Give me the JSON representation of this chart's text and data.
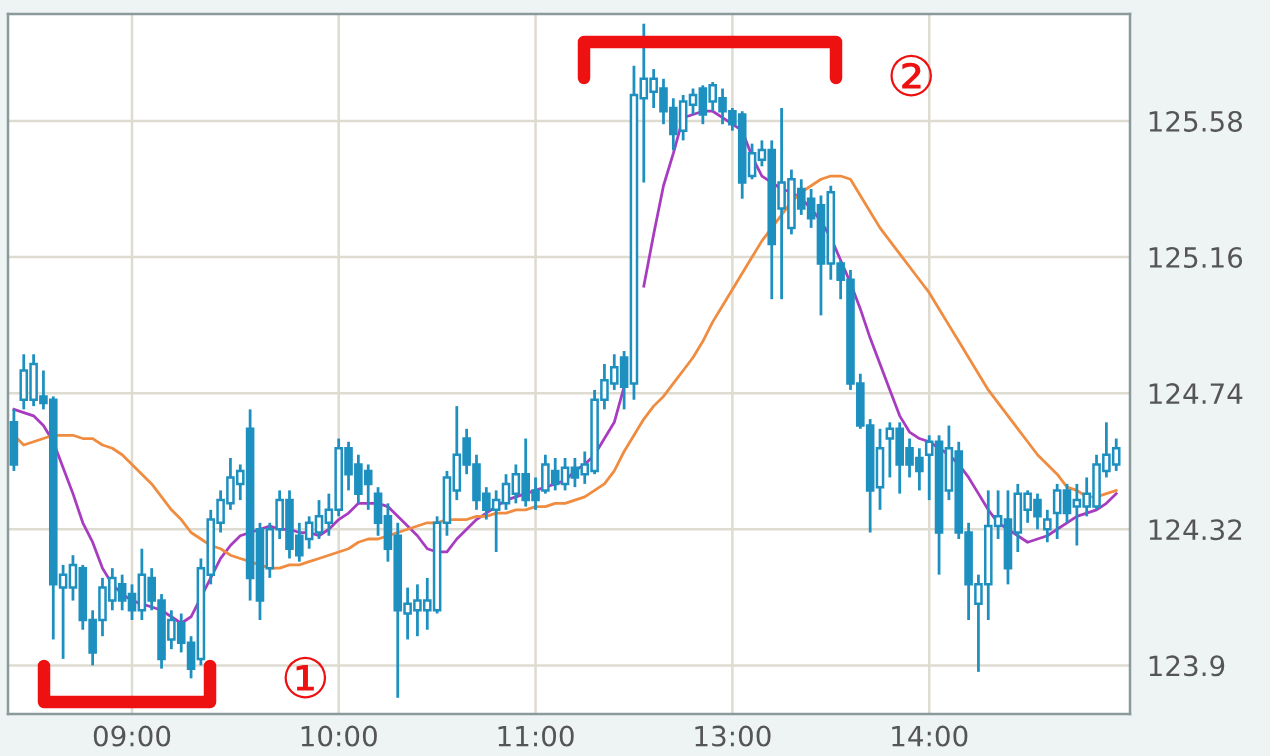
{
  "chart_data": {
    "type": "candlestick",
    "color": "#1e90c0",
    "categories": [
      null,
      null,
      null,
      null,
      null,
      null,
      null,
      null,
      null,
      null,
      null,
      null,
      "09:00",
      null,
      null,
      null,
      null,
      null,
      null,
      null,
      null,
      null,
      null,
      null,
      null,
      null,
      null,
      null,
      null,
      null,
      null,
      null,
      null,
      "10:00",
      null,
      null,
      null,
      null,
      null,
      null,
      null,
      null,
      null,
      null,
      null,
      null,
      null,
      null,
      null,
      null,
      null,
      null,
      null,
      "11:00",
      null,
      null,
      null,
      null,
      null,
      null,
      null,
      null,
      null,
      null,
      null,
      null,
      null,
      null,
      null,
      null,
      null,
      null,
      null,
      "13:00",
      null,
      null,
      null,
      null,
      null,
      null,
      null,
      null,
      null,
      null,
      null,
      null,
      null,
      null,
      null,
      null,
      null,
      null,
      null,
      "14:00",
      null,
      null,
      null,
      null,
      null,
      null,
      null,
      null,
      null,
      null,
      null,
      null,
      null,
      null,
      null,
      null,
      null,
      null,
      null
    ],
    "ohlc": [
      [
        124.65,
        124.69,
        124.5,
        124.52
      ],
      [
        124.72,
        124.86,
        124.69,
        124.81
      ],
      [
        124.72,
        124.86,
        124.7,
        124.83
      ],
      [
        124.73,
        124.81,
        124.69,
        124.71
      ],
      [
        124.72,
        124.73,
        123.98,
        124.15
      ],
      [
        124.14,
        124.21,
        123.92,
        124.18
      ],
      [
        124.14,
        124.24,
        124.1,
        124.21
      ],
      [
        124.2,
        124.21,
        124.01,
        124.04
      ],
      [
        124.04,
        124.07,
        123.9,
        123.94
      ],
      [
        124.04,
        124.17,
        123.99,
        124.14
      ],
      [
        124.1,
        124.2,
        124.07,
        124.17
      ],
      [
        124.15,
        124.18,
        124.07,
        124.1
      ],
      [
        124.12,
        124.15,
        124.04,
        124.07
      ],
      [
        124.07,
        124.26,
        124.04,
        124.18
      ],
      [
        124.17,
        124.2,
        124.07,
        124.1
      ],
      [
        124.1,
        124.12,
        123.89,
        123.92
      ],
      [
        123.98,
        124.07,
        123.95,
        124.04
      ],
      [
        124.03,
        124.06,
        123.94,
        123.97
      ],
      [
        123.97,
        123.99,
        123.86,
        123.89
      ],
      [
        123.92,
        124.23,
        123.9,
        124.2
      ],
      [
        124.18,
        124.38,
        124.15,
        124.35
      ],
      [
        124.34,
        124.44,
        124.31,
        124.41
      ],
      [
        124.4,
        124.54,
        124.38,
        124.48
      ],
      [
        124.46,
        124.52,
        124.41,
        124.5
      ],
      [
        124.63,
        124.69,
        124.1,
        124.17
      ],
      [
        124.32,
        124.34,
        124.04,
        124.1
      ],
      [
        124.2,
        124.34,
        124.17,
        124.32
      ],
      [
        124.32,
        124.44,
        124.29,
        124.41
      ],
      [
        124.41,
        124.44,
        124.23,
        124.26
      ],
      [
        124.3,
        124.34,
        124.22,
        124.24
      ],
      [
        124.29,
        124.36,
        124.26,
        124.34
      ],
      [
        124.31,
        124.41,
        124.29,
        124.36
      ],
      [
        124.34,
        124.43,
        124.3,
        124.38
      ],
      [
        124.38,
        124.6,
        124.36,
        124.57
      ],
      [
        124.57,
        124.59,
        124.44,
        124.49
      ],
      [
        124.52,
        124.55,
        124.4,
        124.43
      ],
      [
        124.5,
        124.52,
        124.38,
        124.46
      ],
      [
        124.43,
        124.45,
        124.3,
        124.34
      ],
      [
        124.36,
        124.4,
        124.22,
        124.26
      ],
      [
        124.3,
        124.34,
        123.8,
        124.07
      ],
      [
        124.06,
        124.14,
        123.98,
        124.09
      ],
      [
        124.07,
        124.15,
        123.99,
        124.1
      ],
      [
        124.07,
        124.17,
        124.01,
        124.1
      ],
      [
        124.07,
        124.36,
        124.06,
        124.34
      ],
      [
        124.34,
        124.5,
        124.3,
        124.48
      ],
      [
        124.44,
        124.7,
        124.41,
        124.55
      ],
      [
        124.6,
        124.63,
        124.49,
        124.52
      ],
      [
        124.52,
        124.55,
        124.38,
        124.41
      ],
      [
        124.43,
        124.45,
        124.35,
        124.38
      ],
      [
        124.38,
        124.44,
        124.25,
        124.41
      ],
      [
        124.4,
        124.49,
        124.38,
        124.46
      ],
      [
        124.43,
        124.52,
        124.4,
        124.49
      ],
      [
        124.49,
        124.6,
        124.39,
        124.41
      ],
      [
        124.44,
        124.48,
        124.38,
        124.41
      ],
      [
        124.44,
        124.55,
        124.43,
        124.52
      ],
      [
        124.5,
        124.54,
        124.44,
        124.46
      ],
      [
        124.46,
        124.54,
        124.44,
        124.51
      ],
      [
        124.51,
        124.54,
        124.45,
        124.48
      ],
      [
        124.49,
        124.56,
        124.46,
        124.52
      ],
      [
        124.5,
        124.75,
        124.49,
        124.72
      ],
      [
        124.72,
        124.83,
        124.69,
        124.78
      ],
      [
        124.77,
        124.86,
        124.75,
        124.82
      ],
      [
        124.85,
        124.87,
        124.69,
        124.76
      ],
      [
        124.77,
        125.75,
        124.72,
        125.66
      ],
      [
        125.65,
        125.88,
        125.39,
        125.71
      ],
      [
        125.67,
        125.74,
        125.62,
        125.71
      ],
      [
        125.68,
        125.71,
        125.57,
        125.61
      ],
      [
        125.62,
        125.65,
        125.49,
        125.54
      ],
      [
        125.55,
        125.66,
        125.52,
        125.64
      ],
      [
        125.63,
        125.68,
        125.6,
        125.66
      ],
      [
        125.68,
        125.69,
        125.57,
        125.6
      ],
      [
        125.64,
        125.7,
        125.61,
        125.69
      ],
      [
        125.65,
        125.68,
        125.57,
        125.61
      ],
      [
        125.61,
        125.62,
        125.55,
        125.57
      ],
      [
        125.6,
        125.61,
        125.34,
        125.39
      ],
      [
        125.41,
        125.51,
        125.4,
        125.48
      ],
      [
        125.46,
        125.52,
        125.44,
        125.49
      ],
      [
        125.49,
        125.52,
        125.03,
        125.2
      ],
      [
        125.31,
        125.62,
        125.03,
        125.39
      ],
      [
        125.25,
        125.43,
        125.23,
        125.4
      ],
      [
        125.37,
        125.4,
        125.29,
        125.31
      ],
      [
        125.34,
        125.37,
        125.25,
        125.28
      ],
      [
        125.32,
        125.35,
        124.98,
        125.14
      ],
      [
        125.14,
        125.38,
        125.09,
        125.36
      ],
      [
        125.14,
        125.15,
        125.03,
        125.09
      ],
      [
        125.09,
        125.12,
        124.75,
        124.77
      ],
      [
        124.77,
        124.8,
        124.63,
        124.64
      ],
      [
        124.64,
        124.66,
        124.31,
        124.44
      ],
      [
        124.45,
        124.63,
        124.38,
        124.57
      ],
      [
        124.6,
        124.65,
        124.48,
        124.63
      ],
      [
        124.63,
        124.65,
        124.43,
        124.52
      ],
      [
        124.57,
        124.6,
        124.48,
        124.52
      ],
      [
        124.54,
        124.57,
        124.44,
        124.5
      ],
      [
        124.55,
        124.61,
        124.41,
        124.59
      ],
      [
        124.59,
        124.61,
        124.18,
        124.31
      ],
      [
        124.44,
        124.64,
        124.41,
        124.57
      ],
      [
        124.56,
        124.59,
        124.29,
        124.31
      ],
      [
        124.31,
        124.34,
        124.04,
        124.15
      ],
      [
        124.09,
        124.18,
        123.88,
        124.15
      ],
      [
        124.15,
        124.44,
        124.04,
        124.33
      ],
      [
        124.33,
        124.44,
        124.29,
        124.36
      ],
      [
        124.35,
        124.44,
        124.15,
        124.2
      ],
      [
        124.31,
        124.46,
        124.25,
        124.43
      ],
      [
        124.38,
        124.44,
        124.34,
        124.43
      ],
      [
        124.41,
        124.43,
        124.32,
        124.36
      ],
      [
        124.32,
        124.38,
        124.28,
        124.35
      ],
      [
        124.37,
        124.46,
        124.29,
        124.44
      ],
      [
        124.44,
        124.46,
        124.34,
        124.37
      ],
      [
        124.39,
        124.46,
        124.27,
        124.41
      ],
      [
        124.39,
        124.48,
        124.36,
        124.43
      ],
      [
        124.39,
        124.55,
        124.38,
        124.52
      ],
      [
        124.5,
        124.65,
        124.48,
        124.55
      ],
      [
        124.52,
        124.6,
        124.5,
        124.57
      ]
    ],
    "series": [
      {
        "type": "line",
        "color": "#a83cc0",
        "values": [
          124.69,
          124.68,
          124.67,
          124.64,
          124.59,
          124.51,
          124.43,
          124.34,
          124.28,
          124.2,
          124.15,
          124.12,
          124.1,
          124.09,
          124.08,
          124.07,
          124.05,
          124.03,
          124.05,
          124.11,
          124.17,
          124.23,
          124.27,
          124.3,
          124.31,
          124.32,
          124.33,
          124.32,
          124.32,
          124.31,
          124.31,
          124.3,
          124.32,
          124.35,
          124.37,
          124.4,
          124.4,
          124.4,
          124.39,
          124.36,
          124.33,
          124.3,
          124.26,
          124.25,
          124.25,
          124.29,
          124.32,
          124.35,
          124.37,
          124.39,
          124.41,
          124.42,
          124.43,
          124.44,
          124.45,
          124.46,
          124.47,
          124.5,
          124.52,
          124.55,
          124.6,
          124.65,
          124.76,
          null,
          125.07,
          125.23,
          125.38,
          125.48,
          125.59,
          125.6,
          125.61,
          125.61,
          125.59,
          125.57,
          125.55,
          125.47,
          125.41,
          125.39,
          125.37,
          125.36,
          125.34,
          125.31,
          125.27,
          125.22,
          125.15,
          125.08,
          125.0,
          124.91,
          124.83,
          124.75,
          124.67,
          124.62,
          124.6,
          124.59,
          124.57,
          124.55,
          124.52,
          124.48,
          124.43,
          124.38,
          124.34,
          124.32,
          124.3,
          124.28,
          124.29,
          124.3,
          124.32,
          124.34,
          124.36,
          124.37,
          124.38,
          124.4,
          124.43
        ]
      },
      {
        "type": "line",
        "color": "#f08c40",
        "values": [
          124.61,
          124.58,
          124.59,
          124.6,
          124.61,
          124.61,
          124.61,
          124.6,
          124.6,
          124.58,
          124.57,
          124.55,
          124.52,
          124.49,
          124.46,
          124.42,
          124.38,
          124.35,
          124.31,
          124.29,
          124.27,
          124.26,
          124.24,
          124.23,
          124.22,
          124.21,
          124.2,
          124.2,
          124.21,
          124.21,
          124.22,
          124.23,
          124.24,
          124.25,
          124.26,
          124.28,
          124.29,
          124.29,
          124.3,
          124.31,
          124.32,
          124.33,
          124.34,
          124.34,
          124.35,
          124.35,
          124.35,
          124.36,
          124.36,
          124.37,
          124.37,
          124.38,
          124.38,
          124.39,
          124.39,
          124.4,
          124.4,
          124.41,
          124.42,
          124.44,
          124.46,
          124.5,
          124.56,
          124.61,
          124.66,
          124.7,
          124.73,
          124.77,
          124.81,
          124.85,
          124.9,
          124.96,
          125.01,
          125.06,
          125.11,
          125.16,
          125.21,
          125.25,
          125.29,
          125.33,
          125.36,
          125.38,
          125.4,
          125.41,
          125.41,
          125.4,
          125.35,
          125.3,
          125.25,
          125.21,
          125.17,
          125.13,
          125.09,
          125.05,
          125.0,
          124.95,
          124.9,
          124.85,
          124.8,
          124.75,
          124.71,
          124.67,
          124.63,
          124.59,
          124.55,
          124.52,
          124.49,
          124.45,
          124.44,
          124.42,
          124.42,
          124.43,
          124.44
        ]
      }
    ],
    "ylim": [
      123.75,
      125.91
    ],
    "yticks": [
      123.9,
      124.32,
      124.74,
      125.16,
      125.58
    ],
    "grid": true,
    "annotations": [
      "①",
      "②"
    ]
  }
}
